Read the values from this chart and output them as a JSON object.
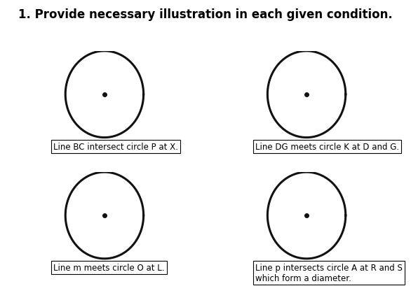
{
  "title": "1. Provide necessary illustration in each given condition.",
  "title_fontsize": 12,
  "title_fontweight": "bold",
  "circles": [
    {
      "row": 0,
      "col": 0,
      "label": "Line BC intersect circle P at X.",
      "label2": ""
    },
    {
      "row": 0,
      "col": 1,
      "label": "Line DG meets circle K at D and G.",
      "label2": ""
    },
    {
      "row": 1,
      "col": 0,
      "label": "Line m meets circle O at L.",
      "label2": ""
    },
    {
      "row": 1,
      "col": 1,
      "label": "Line p intersects circle A at R and S",
      "label2": "which form a diameter."
    }
  ],
  "circle_linewidth": 2.2,
  "circle_color": "#111111",
  "dot_size": 4,
  "dot_color": "#111111",
  "label_fontsize": 8.5,
  "background_color": "#ffffff",
  "figsize": [
    5.86,
    4.1
  ],
  "dpi": 100
}
